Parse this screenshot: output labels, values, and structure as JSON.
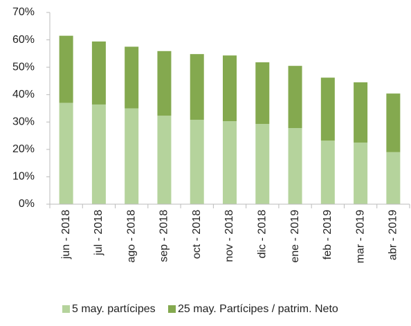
{
  "chart_data": {
    "type": "stacked_bar",
    "categories": [
      "jun - 2018",
      "jul - 2018",
      "ago - 2018",
      "sep - 2018",
      "oct - 2018",
      "nov - 2018",
      "dic - 2018",
      "ene - 2019",
      "feb - 2019",
      "mar - 2019",
      "abr - 2019"
    ],
    "series": [
      {
        "name": "5 may. partícipes",
        "color": "#b5d39c",
        "values": [
          37,
          36.4,
          35,
          32.3,
          30.8,
          30.3,
          29.3,
          27.8,
          23.2,
          22.5,
          19
        ]
      },
      {
        "name": "25 may. Partícipes / patrim. Neto",
        "color": "#84a94f",
        "values": [
          24.5,
          23,
          22.5,
          23.6,
          24,
          24,
          22.5,
          22.7,
          23,
          22,
          21.4
        ]
      }
    ],
    "ylim": [
      0,
      70
    ],
    "yticks": [
      {
        "value": 0,
        "label": "0%"
      },
      {
        "value": 10,
        "label": "10%"
      },
      {
        "value": 20,
        "label": "20%"
      },
      {
        "value": 30,
        "label": "30%"
      },
      {
        "value": 40,
        "label": "40%"
      },
      {
        "value": 50,
        "label": "50%"
      },
      {
        "value": 60,
        "label": "60%"
      },
      {
        "value": 70,
        "label": "70%"
      }
    ],
    "grid": false,
    "legend": "bottom"
  }
}
